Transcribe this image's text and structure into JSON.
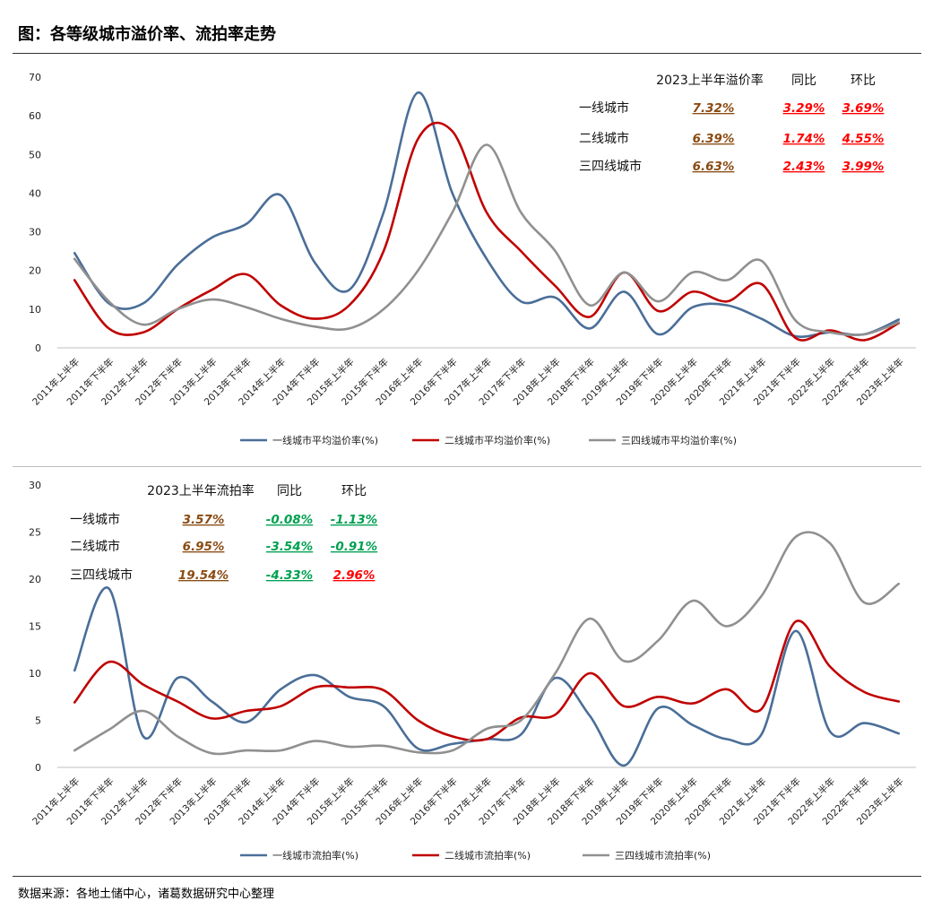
{
  "figure_title": "图：各等级城市溢价率、流拍率走势",
  "source_note": "数据来源：各地土储中心，诸葛数据研究中心整理",
  "colors": {
    "tier1": "#4a6e98",
    "tier2": "#c00000",
    "tier34": "#909090",
    "brown": "#8a4b12",
    "red": "#ff0000",
    "green": "#00a050"
  },
  "chart_data": [
    {
      "type": "line",
      "title": "溢价率",
      "categories": [
        "2011年上半年",
        "2011年下半年",
        "2012年上半年",
        "2012年下半年",
        "2013年上半年",
        "2013年下半年",
        "2014年上半年",
        "2014年下半年",
        "2015年上半年",
        "2015年下半年",
        "2016年上半年",
        "2016年下半年",
        "2017年上半年",
        "2017年下半年",
        "2018年上半年",
        "2018年下半年",
        "2019年上半年",
        "2019年下半年",
        "2020年上半年",
        "2020年下半年",
        "2021年上半年",
        "2021年下半年",
        "2022年上半年",
        "2022年下半年",
        "2023年上半年"
      ],
      "yticks": [
        "0",
        "10",
        "20",
        "30",
        "40",
        "50",
        "60",
        "70"
      ],
      "ylim": [
        0,
        70
      ],
      "series": [
        {
          "name": "一线城市平均溢价率(%)",
          "color_key": "tier1",
          "values": [
            24.5,
            11.5,
            11.5,
            21.5,
            28.5,
            32,
            39.5,
            22,
            15,
            35,
            66,
            40,
            23,
            12,
            13,
            5,
            14.5,
            3.5,
            10.5,
            11,
            7.5,
            3,
            4,
            3.5,
            7.3
          ]
        },
        {
          "name": "二线城市平均溢价率(%)",
          "color_key": "tier2",
          "values": [
            17.5,
            5,
            4,
            10,
            15,
            19,
            11,
            7.5,
            11,
            25,
            54,
            56,
            35,
            25,
            16,
            8,
            19.5,
            9.5,
            14.5,
            12,
            16.5,
            2.5,
            4.5,
            2,
            6.4
          ]
        },
        {
          "name": "三四线城市平均溢价率(%)",
          "color_key": "tier34",
          "values": [
            23,
            12,
            6,
            10,
            12.5,
            10.5,
            7.5,
            5.5,
            5,
            10,
            20,
            35,
            52.5,
            35,
            25,
            11,
            19.5,
            12,
            19.5,
            17.5,
            22.5,
            7,
            4,
            3.5,
            6.6
          ]
        }
      ],
      "table": {
        "header": [
          "2023上半年溢价率",
          "同比",
          "环比"
        ],
        "rows": [
          {
            "city": "一线城市",
            "rate": "7.32%",
            "yoy": "3.29%",
            "mom": "3.69%",
            "rate_color": "brown",
            "yoy_color": "red",
            "mom_color": "red"
          },
          {
            "city": "二线城市",
            "rate": "6.39%",
            "yoy": "1.74%",
            "mom": "4.55%",
            "rate_color": "brown",
            "yoy_color": "red",
            "mom_color": "red"
          },
          {
            "city": "三四线城市",
            "rate": "6.63%",
            "yoy": "2.43%",
            "mom": "3.99%",
            "rate_color": "brown",
            "yoy_color": "red",
            "mom_color": "red"
          }
        ]
      }
    },
    {
      "type": "line",
      "title": "流拍率",
      "categories": [
        "2011年上半年",
        "2011年下半年",
        "2012年上半年",
        "2012年下半年",
        "2013年上半年",
        "2013年下半年",
        "2014年上半年",
        "2014年下半年",
        "2015年上半年",
        "2015年下半年",
        "2016年上半年",
        "2016年下半年",
        "2017年上半年",
        "2017年下半年",
        "2018年上半年",
        "2018年下半年",
        "2019年上半年",
        "2019年下半年",
        "2020年上半年",
        "2020年下半年",
        "2021年上半年",
        "2021年下半年",
        "2022年上半年",
        "2022年下半年",
        "2023年上半年"
      ],
      "yticks": [
        "0",
        "5",
        "10",
        "15",
        "20",
        "25",
        "30"
      ],
      "ylim": [
        0,
        30
      ],
      "series": [
        {
          "name": "一线城市流拍率(%)",
          "color_key": "tier1",
          "values": [
            10.3,
            19,
            3.3,
            9.5,
            7,
            4.8,
            8.3,
            9.8,
            7.5,
            6.5,
            2,
            2.5,
            3,
            3.5,
            9.5,
            5.5,
            0.2,
            6.3,
            4.5,
            3,
            3.5,
            14.5,
            3.8,
            4.7,
            3.6
          ]
        },
        {
          "name": "二线城市流拍率(%)",
          "color_key": "tier2",
          "values": [
            6.9,
            11.2,
            8.8,
            7,
            5.2,
            6,
            6.5,
            8.5,
            8.5,
            8.2,
            5,
            3.3,
            3,
            5.3,
            5.6,
            10,
            6.5,
            7.5,
            6.8,
            8.3,
            6.2,
            15.5,
            10.7,
            8,
            7
          ]
        },
        {
          "name": "三四线城市流拍率(%)",
          "color_key": "tier34",
          "values": [
            1.8,
            4,
            6,
            3.3,
            1.5,
            1.8,
            1.8,
            2.8,
            2.2,
            2.3,
            1.6,
            1.8,
            4.1,
            5,
            10,
            15.8,
            11.3,
            13.5,
            17.7,
            15,
            18.2,
            24.5,
            23.8,
            17.5,
            19.5
          ]
        }
      ],
      "table": {
        "header": [
          "2023上半年流拍率",
          "同比",
          "环比"
        ],
        "rows": [
          {
            "city": "一线城市",
            "rate": "3.57%",
            "yoy": "-0.08%",
            "mom": "-1.13%",
            "rate_color": "brown",
            "yoy_color": "green",
            "mom_color": "green"
          },
          {
            "city": "二线城市",
            "rate": "6.95%",
            "yoy": "-3.54%",
            "mom": "-0.91%",
            "rate_color": "brown",
            "yoy_color": "green",
            "mom_color": "green"
          },
          {
            "city": "三四线城市",
            "rate": "19.54%",
            "yoy": "-4.33%",
            "mom": "2.96%",
            "rate_color": "brown",
            "yoy_color": "green",
            "mom_color": "red"
          }
        ]
      }
    }
  ]
}
